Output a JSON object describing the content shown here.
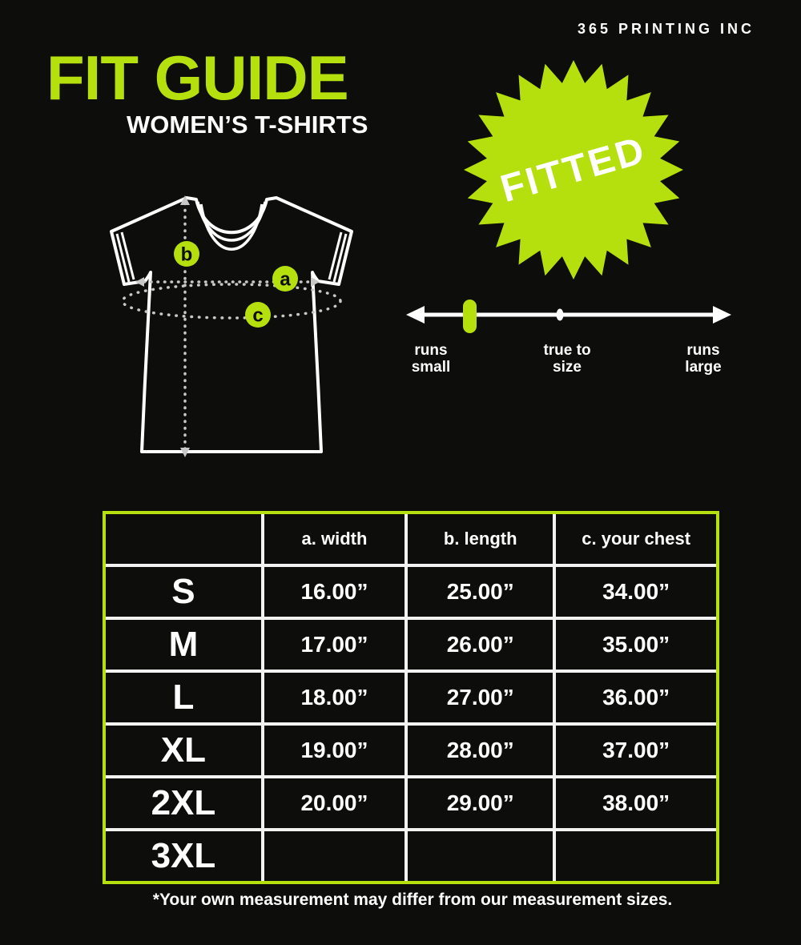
{
  "header": {
    "brand": "365 PRINTING INC"
  },
  "title": {
    "main": "FIT GUIDE",
    "sub": "WOMEN’S T-SHIRTS"
  },
  "badge": {
    "label": "FITTED"
  },
  "diagram": {
    "marker_a": "a",
    "marker_b": "b",
    "marker_c": "c"
  },
  "fit_scale": {
    "labels": [
      [
        "runs",
        "small"
      ],
      [
        "true to",
        "size"
      ],
      [
        "runs",
        "large"
      ]
    ],
    "marker_position": "runs small"
  },
  "size_chart": {
    "headers": [
      "",
      "a. width",
      "b. length",
      "c. your chest"
    ],
    "rows": [
      {
        "size": "S",
        "values": [
          "16.00”",
          "25.00”",
          "34.00”"
        ]
      },
      {
        "size": "M",
        "values": [
          "17.00”",
          "26.00”",
          "35.00”"
        ]
      },
      {
        "size": "L",
        "values": [
          "18.00”",
          "27.00”",
          "36.00”"
        ]
      },
      {
        "size": "XL",
        "values": [
          "19.00”",
          "28.00”",
          "37.00”"
        ]
      },
      {
        "size": "2XL",
        "values": [
          "20.00”",
          "29.00”",
          "38.00”"
        ]
      },
      {
        "size": "3XL",
        "values": [
          "",
          "",
          ""
        ]
      }
    ],
    "footnote": "*Your own measurement may differ from our measurement sizes."
  },
  "colors": {
    "background": "#0d0d0b",
    "accent_green": "#b5e00e",
    "text": "#ffffff",
    "dotted_line": "#c8c8c8"
  }
}
